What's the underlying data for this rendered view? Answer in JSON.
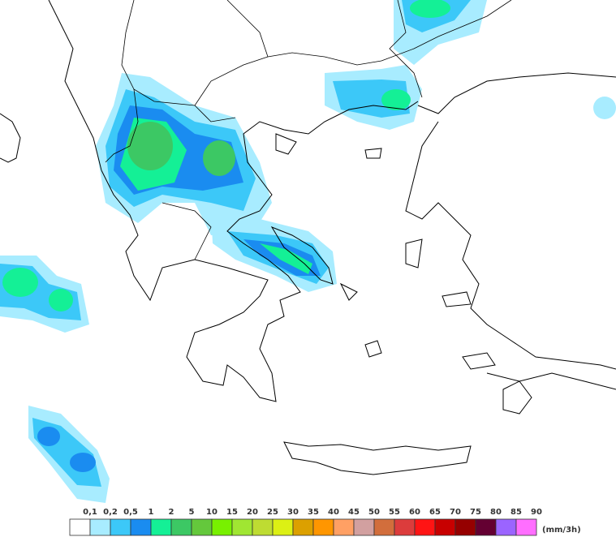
{
  "legend": {
    "unit": "(mm/3h)",
    "items": [
      {
        "label": "0,1",
        "color": "#ffffff"
      },
      {
        "label": "0,2",
        "color": "#a8ecff"
      },
      {
        "label": "0,5",
        "color": "#3cc8f8"
      },
      {
        "label": "1",
        "color": "#1a8cf0"
      },
      {
        "label": "2",
        "color": "#14f096"
      },
      {
        "label": "5",
        "color": "#3cc864"
      },
      {
        "label": "10",
        "color": "#64c83c"
      },
      {
        "label": "15",
        "color": "#78f000"
      },
      {
        "label": "20",
        "color": "#a0e632"
      },
      {
        "label": "25",
        "color": "#bedc32"
      },
      {
        "label": "30",
        "color": "#dcf014"
      },
      {
        "label": "35",
        "color": "#dca000"
      },
      {
        "label": "40",
        "color": "#ff9600"
      },
      {
        "label": "45",
        "color": "#ffa064"
      },
      {
        "label": "50",
        "color": "#d2a0a0"
      },
      {
        "label": "55",
        "color": "#d26e3c"
      },
      {
        "label": "60",
        "color": "#dc3c3c"
      },
      {
        "label": "65",
        "color": "#ff1414"
      },
      {
        "label": "70",
        "color": "#c80000"
      },
      {
        "label": "75",
        "color": "#960000"
      },
      {
        "label": "80",
        "color": "#640032"
      },
      {
        "label": "85",
        "color": "#9b64ff"
      },
      {
        "label": "90",
        "color": "#ff6eff"
      }
    ]
  }
}
